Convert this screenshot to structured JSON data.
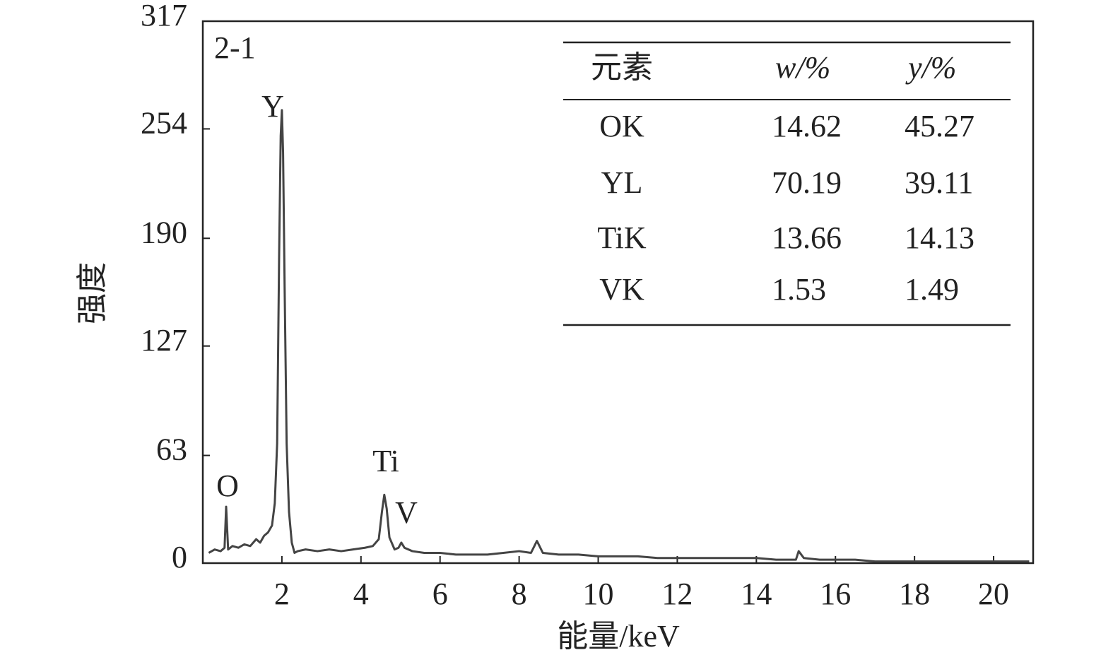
{
  "chart_data": {
    "type": "line",
    "panel_label": "2-1",
    "x_label": "能量/keV",
    "y_label": "强度",
    "annotations": [
      "O",
      "Y",
      "Ti",
      "V"
    ],
    "x": [
      0.15,
      0.3,
      0.45,
      0.55,
      0.59,
      0.64,
      0.75,
      0.9,
      1.05,
      1.2,
      1.35,
      1.45,
      1.55,
      1.65,
      1.75,
      1.82,
      1.88,
      1.93,
      1.97,
      2.0,
      2.03,
      2.07,
      2.12,
      2.18,
      2.25,
      2.32,
      2.4,
      2.6,
      2.9,
      3.2,
      3.5,
      3.8,
      4.1,
      4.3,
      4.45,
      4.53,
      4.59,
      4.65,
      4.72,
      4.85,
      4.95,
      5.02,
      5.1,
      5.3,
      5.6,
      6.0,
      6.4,
      6.8,
      7.2,
      7.6,
      8.0,
      8.3,
      8.45,
      8.6,
      9.0,
      9.5,
      10,
      10.5,
      11,
      11.5,
      12,
      12.5,
      13,
      13.5,
      14,
      14.5,
      15.0,
      15.07,
      15.2,
      15.6,
      16,
      16.5,
      17,
      17.5,
      18,
      18.5,
      19,
      19.5,
      20,
      20.5,
      20.9
    ],
    "values": [
      6,
      8,
      7,
      9,
      33,
      8,
      10,
      9,
      11,
      10,
      14,
      12,
      16,
      18,
      22,
      35,
      70,
      180,
      250,
      265,
      240,
      160,
      70,
      30,
      12,
      6,
      7,
      8,
      7,
      8,
      7,
      8,
      9,
      10,
      14,
      30,
      40,
      32,
      15,
      8,
      9,
      12,
      9,
      7,
      6,
      6,
      5,
      5,
      5,
      6,
      7,
      6,
      13,
      6,
      5,
      5,
      4,
      4,
      4,
      3,
      3,
      3,
      3,
      3,
      3,
      2,
      2,
      7,
      3,
      2,
      2,
      2,
      1,
      1,
      1,
      1,
      1,
      1,
      1,
      1,
      1
    ],
    "color": "#444444",
    "xlim": [
      0,
      21
    ],
    "ylim": [
      0,
      317
    ],
    "xticks": [
      2,
      4,
      6,
      8,
      10,
      12,
      14,
      16,
      18,
      20
    ],
    "yticks": [
      0,
      63,
      127,
      190,
      254,
      317
    ],
    "table": {
      "header": [
        "元素",
        "w/%",
        "y/%"
      ],
      "rows": [
        [
          "OK",
          "14.62",
          "45.27"
        ],
        [
          "YL",
          "70.19",
          "39.11"
        ],
        [
          "TiK",
          "13.66",
          "14.13"
        ],
        [
          "VK",
          "1.53",
          "1.49"
        ]
      ]
    }
  }
}
